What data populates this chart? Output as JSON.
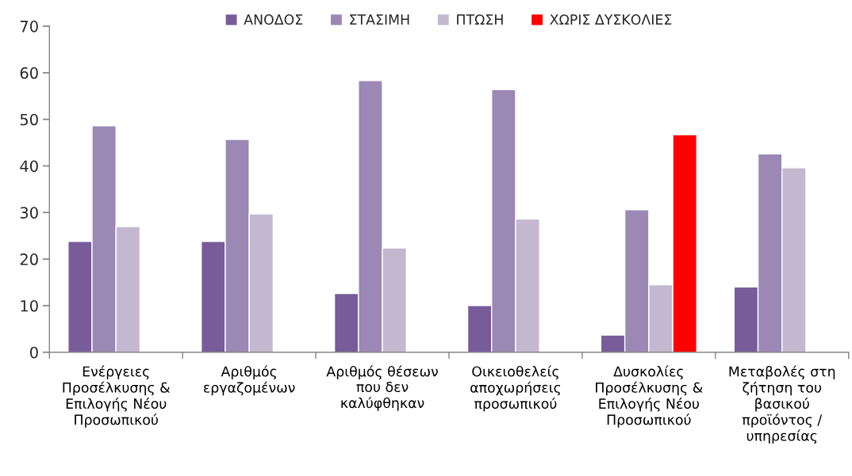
{
  "chart_data": {
    "type": "bar",
    "categories": [
      "Ενέργειες\nΠροσέλκυσης &\nΕπιλογής Νέου\nΠροσωπικού",
      "Αριθμός\nεργαζομένων",
      "Αριθμός θέσεων\nπου δεν\nκαλύφθηκαν",
      "Οικειοθελείς\nαποχωρήσεις\nπροσωπικού",
      "Δυσκολίες\nΠροσέλκυσης &\nΕπιλογής Νέου\nΠροσωπικού",
      "Μεταβολές στη\nζήτηση του\nβασικού\nπροϊόντος /\nυπηρεσίας"
    ],
    "series": [
      {
        "name": "ΑΝΟΔΟΣ",
        "color": "#775c99",
        "values": [
          23.8,
          23.8,
          12.6,
          10.0,
          3.7,
          14.0
        ]
      },
      {
        "name": "ΣΤΑΣΙΜΗ",
        "color": "#9b88b5",
        "values": [
          48.6,
          45.7,
          58.3,
          56.4,
          30.6,
          42.6
        ]
      },
      {
        "name": "ΠΤΩΣΗ",
        "color": "#c3b8d0",
        "values": [
          27.0,
          29.7,
          22.4,
          28.6,
          14.5,
          39.6
        ]
      },
      {
        "name": "ΧΩΡΙΣ ΔΥΣΚΟΛΙΕΣ",
        "color": "#ff0000",
        "values": [
          null,
          null,
          null,
          null,
          46.7,
          null
        ]
      }
    ],
    "ylim": [
      0,
      70
    ],
    "yticks": [
      0,
      10,
      20,
      30,
      40,
      50,
      60,
      70
    ],
    "grid": false,
    "legend": "top"
  }
}
